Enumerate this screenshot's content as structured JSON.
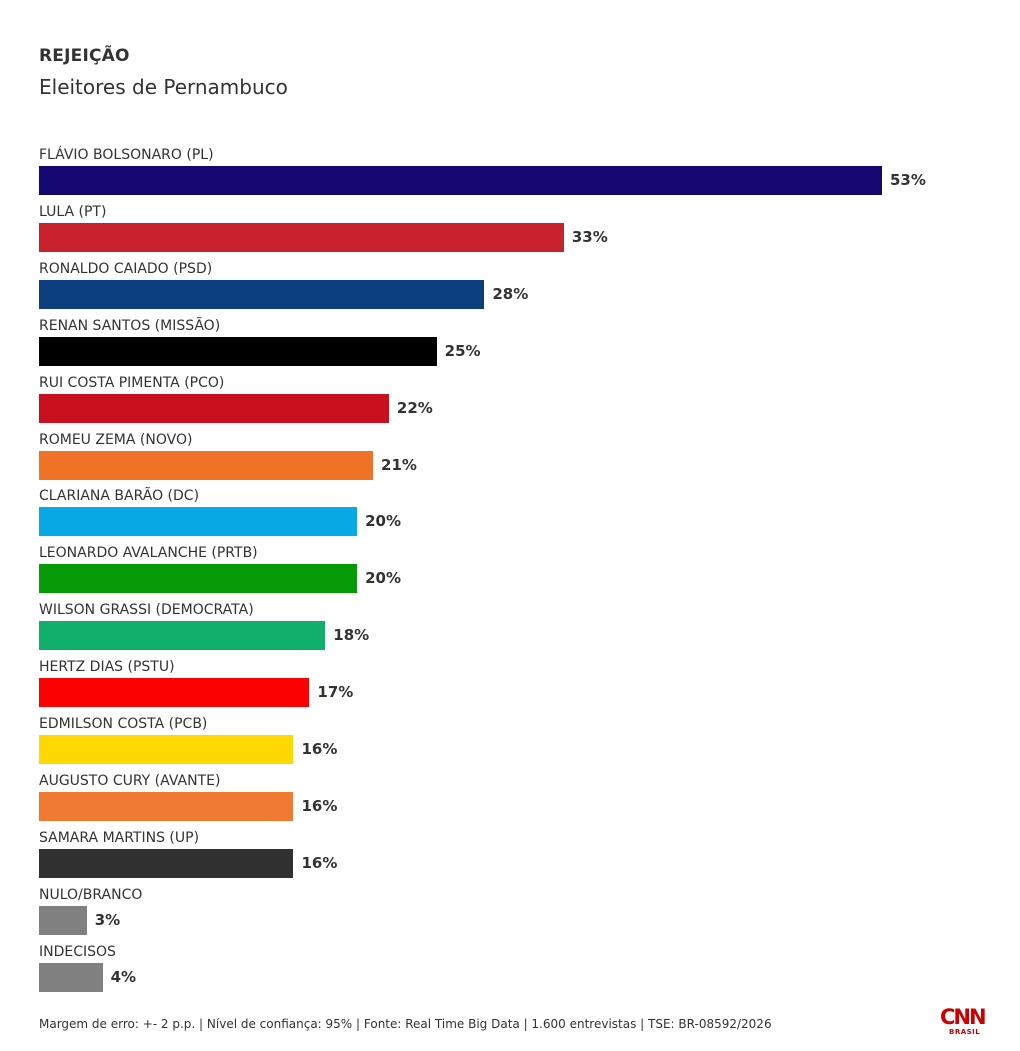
{
  "chart_data": {
    "type": "bar",
    "orientation": "horizontal",
    "title": "REJEIÇÃO",
    "subtitle": "Eleitores de Pernambuco",
    "value_suffix": "%",
    "xlim": [
      0,
      53
    ],
    "grid": false,
    "categories": [
      "FLÁVIO BOLSONARO (PL)",
      "LULA (PT)",
      "RONALDO CAIADO (PSD)",
      "RENAN SANTOS (MISSÃO)",
      "RUI COSTA PIMENTA (PCO)",
      "ROMEU ZEMA (NOVO)",
      "CLARIANA BARÃO (DC)",
      "LEONARDO AVALANCHE (PRTB)",
      "WILSON GRASSI (DEMOCRATA)",
      "HERTZ DIAS (PSTU)",
      "EDMILSON COSTA (PCB)",
      "AUGUSTO CURY (AVANTE)",
      "SAMARA MARTINS (UP)",
      "NULO/BRANCO",
      "INDECISOS"
    ],
    "values": [
      53,
      33,
      28,
      25,
      22,
      21,
      20,
      20,
      18,
      17,
      16,
      16,
      16,
      3,
      4
    ],
    "value_labels": [
      "53%",
      "33%",
      "28%",
      "25%",
      "22%",
      "21%",
      "20%",
      "20%",
      "18%",
      "17%",
      "16%",
      "16%",
      "16%",
      "3%",
      "4%"
    ],
    "colors": [
      "#150771",
      "#c8232c",
      "#0b3f80",
      "#000000",
      "#c8101e",
      "#f07226",
      "#06a9e3",
      "#069a06",
      "#10b06b",
      "#fa0202",
      "#fdd802",
      "#f07a31",
      "#303030",
      "#808080",
      "#808080"
    ]
  },
  "footnote": "Margem de erro: +- 2 p.p. | Nível de confiança: 95% | Fonte: Real Time Big Data | 1.600 entrevistas | TSE: BR-08592/2026",
  "logo": {
    "mark": "CNN",
    "sub": "BRASIL",
    "color": "#cc0000"
  }
}
